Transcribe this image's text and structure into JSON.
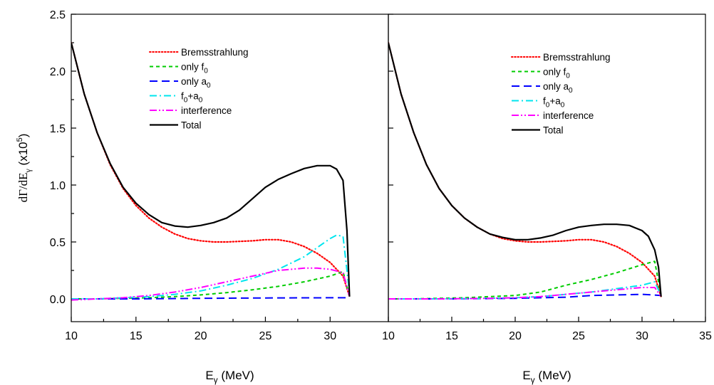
{
  "chart_data": [
    {
      "type": "line",
      "panel": "left",
      "xlabel": {
        "main": "E",
        "sub": "γ",
        "rest": " (MeV)"
      },
      "ylabel": {
        "part1": "dΓ/dE",
        "sub": "γ",
        "part2": "  (x10",
        "sup": "5",
        "part3": ")"
      },
      "xlim": [
        10,
        34.5
      ],
      "ylim": [
        -0.2,
        2.5
      ],
      "xticks": [
        10,
        15,
        20,
        25,
        30
      ],
      "yticks": [
        0.0,
        0.5,
        1.0,
        1.5,
        2.0,
        2.5
      ],
      "ytick_labels": [
        "0.0",
        "0.5",
        "1.0",
        "1.5",
        "2.0",
        "2.5"
      ],
      "legend_position": "top-center",
      "series": [
        {
          "key": "brems",
          "label": "Bremsstrahlung",
          "color": "#ff0000",
          "dash": "dot",
          "x": [
            10,
            11,
            12,
            13,
            14,
            15,
            16,
            17,
            18,
            19,
            20,
            21,
            22,
            23,
            24,
            25,
            26,
            27,
            28,
            29,
            30,
            31,
            31.5
          ],
          "y": [
            2.25,
            1.8,
            1.46,
            1.18,
            0.97,
            0.82,
            0.71,
            0.63,
            0.57,
            0.53,
            0.51,
            0.5,
            0.5,
            0.505,
            0.51,
            0.52,
            0.52,
            0.5,
            0.46,
            0.4,
            0.32,
            0.2,
            0.02
          ]
        },
        {
          "key": "f0",
          "label": "only f",
          "label_sub": "0",
          "color": "#00cc00",
          "dash": "short-dash",
          "x": [
            10,
            12,
            14,
            16,
            18,
            20,
            22,
            24,
            26,
            28,
            30,
            31,
            31.5
          ],
          "y": [
            0.0,
            0.0,
            0.005,
            0.01,
            0.02,
            0.035,
            0.055,
            0.08,
            0.11,
            0.15,
            0.2,
            0.24,
            0.02
          ]
        },
        {
          "key": "a0",
          "label": "only a",
          "label_sub": "0",
          "color": "#0000ff",
          "dash": "long-dash",
          "x": [
            10,
            15,
            20,
            25,
            30,
            31.5
          ],
          "y": [
            0.0,
            0.0,
            0.005,
            0.008,
            0.01,
            0.01
          ]
        },
        {
          "key": "f0a0",
          "label": "f",
          "label_sub": "0",
          "label_rest": "+a",
          "label_sub2": "0",
          "color": "#00e5ee",
          "dash": "dash-dot",
          "x": [
            10,
            12,
            14,
            16,
            18,
            20,
            22,
            24,
            26,
            28,
            29,
            30,
            30.5,
            31,
            31.5
          ],
          "y": [
            0.0,
            0.0,
            0.01,
            0.02,
            0.04,
            0.07,
            0.12,
            0.18,
            0.26,
            0.37,
            0.45,
            0.53,
            0.56,
            0.55,
            0.05
          ]
        },
        {
          "key": "interference",
          "label": "interference",
          "color": "#ff00ff",
          "dash": "dash-dot-dot",
          "x": [
            10,
            12,
            14,
            16,
            18,
            20,
            22,
            24,
            26,
            28,
            29,
            30,
            31,
            31.5
          ],
          "y": [
            -0.01,
            0.0,
            0.01,
            0.03,
            0.06,
            0.1,
            0.15,
            0.2,
            0.25,
            0.27,
            0.27,
            0.26,
            0.23,
            0.02
          ]
        },
        {
          "key": "total",
          "label": "Total",
          "color": "#000000",
          "dash": "solid",
          "x": [
            10,
            11,
            12,
            13,
            14,
            15,
            16,
            17,
            18,
            19,
            20,
            21,
            22,
            23,
            24,
            25,
            26,
            27,
            28,
            29,
            30,
            30.5,
            31,
            31.3,
            31.5
          ],
          "y": [
            2.25,
            1.8,
            1.46,
            1.19,
            0.98,
            0.84,
            0.74,
            0.67,
            0.64,
            0.63,
            0.645,
            0.67,
            0.71,
            0.78,
            0.88,
            0.98,
            1.05,
            1.1,
            1.145,
            1.17,
            1.17,
            1.14,
            1.04,
            0.6,
            0.02
          ]
        }
      ]
    },
    {
      "type": "line",
      "panel": "right",
      "xlabel": {
        "main": "E",
        "sub": "γ",
        "rest": " (MeV)"
      },
      "xlim": [
        10,
        35
      ],
      "ylim": [
        -0.2,
        2.5
      ],
      "xticks": [
        10,
        15,
        20,
        25,
        30,
        35
      ],
      "legend_position": "top-right",
      "series": [
        {
          "key": "brems",
          "label": "Bremsstrahlung",
          "color": "#ff0000",
          "dash": "dot",
          "x": [
            10,
            11,
            12,
            13,
            14,
            15,
            16,
            17,
            18,
            19,
            20,
            21,
            22,
            23,
            24,
            25,
            26,
            27,
            28,
            29,
            30,
            31,
            31.5
          ],
          "y": [
            2.25,
            1.8,
            1.46,
            1.18,
            0.97,
            0.82,
            0.71,
            0.63,
            0.57,
            0.53,
            0.51,
            0.5,
            0.5,
            0.505,
            0.51,
            0.52,
            0.52,
            0.5,
            0.46,
            0.4,
            0.32,
            0.2,
            0.02
          ]
        },
        {
          "key": "f0",
          "label": "only f",
          "label_sub": "0",
          "color": "#00cc00",
          "dash": "short-dash",
          "x": [
            10,
            12,
            14,
            16,
            18,
            20,
            22,
            24,
            26,
            28,
            30,
            31,
            31.5
          ],
          "y": [
            0.0,
            0.0,
            0.005,
            0.01,
            0.02,
            0.03,
            0.06,
            0.12,
            0.17,
            0.23,
            0.3,
            0.33,
            0.03
          ]
        },
        {
          "key": "a0",
          "label": "only a",
          "label_sub": "0",
          "color": "#0000ff",
          "dash": "long-dash",
          "x": [
            10,
            15,
            20,
            22,
            24,
            26,
            28,
            30,
            31.5
          ],
          "y": [
            0.0,
            0.0,
            0.005,
            0.01,
            0.015,
            0.03,
            0.035,
            0.04,
            0.03
          ]
        },
        {
          "key": "f0a0",
          "label": "f",
          "label_sub": "0",
          "label_rest": "+a",
          "label_sub2": "0",
          "color": "#00e5ee",
          "dash": "dash-dot",
          "x": [
            10,
            14,
            18,
            20,
            22,
            24,
            26,
            28,
            30,
            31,
            31.5
          ],
          "y": [
            0.0,
            0.0,
            0.005,
            0.01,
            0.02,
            0.04,
            0.06,
            0.09,
            0.12,
            0.15,
            0.03
          ]
        },
        {
          "key": "interference",
          "label": "interference",
          "color": "#ff00ff",
          "dash": "dash-dot-dot",
          "x": [
            10,
            14,
            18,
            20,
            22,
            24,
            26,
            28,
            30,
            31,
            31.5
          ],
          "y": [
            0.0,
            0.0,
            0.005,
            0.01,
            0.02,
            0.04,
            0.06,
            0.08,
            0.1,
            0.1,
            0.02
          ]
        },
        {
          "key": "total",
          "label": "Total",
          "color": "#000000",
          "dash": "solid",
          "x": [
            10,
            11,
            12,
            13,
            14,
            15,
            16,
            17,
            18,
            19,
            20,
            21,
            22,
            23,
            24,
            25,
            26,
            27,
            28,
            29,
            30,
            30.5,
            31,
            31.3,
            31.5
          ],
          "y": [
            2.25,
            1.8,
            1.46,
            1.18,
            0.97,
            0.82,
            0.71,
            0.63,
            0.57,
            0.54,
            0.52,
            0.52,
            0.535,
            0.56,
            0.6,
            0.63,
            0.645,
            0.655,
            0.655,
            0.645,
            0.6,
            0.55,
            0.43,
            0.28,
            0.02
          ]
        }
      ]
    }
  ]
}
